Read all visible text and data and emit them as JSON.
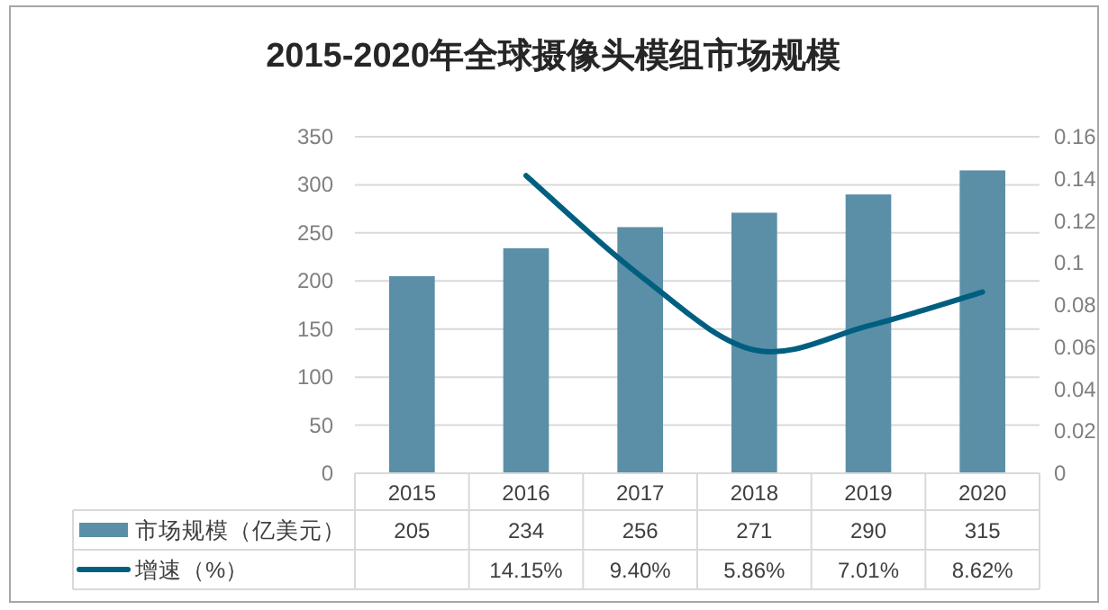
{
  "chart_data": {
    "type": "bar",
    "title": "2015-2020年全球摄像头模组市场规模",
    "categories": [
      "2015",
      "2016",
      "2017",
      "2018",
      "2019",
      "2020"
    ],
    "series": [
      {
        "name": "市场规模（亿美元）",
        "color": "#5b8fa7",
        "values": [
          205,
          234,
          256,
          271,
          290,
          315
        ],
        "value_labels": [
          "205",
          "234",
          "256",
          "271",
          "290",
          "315"
        ]
      },
      {
        "name": "增速（%）",
        "type": "line",
        "axis": "y2",
        "color": "#005f80",
        "values": [
          null,
          0.1415,
          0.094,
          0.0586,
          0.0701,
          0.0862
        ],
        "value_labels": [
          null,
          "14.15%",
          "9.40%",
          "5.86%",
          "7.01%",
          "8.62%"
        ]
      }
    ],
    "ylim": [
      0,
      350
    ],
    "yticks": [
      0,
      50,
      100,
      150,
      200,
      250,
      300,
      350
    ],
    "y2lim": [
      0,
      0.16
    ],
    "y2ticks": [
      0,
      0.02,
      0.04,
      0.06,
      0.08,
      0.1,
      0.12,
      0.14,
      0.16
    ],
    "grid": "y",
    "legend": "bottom"
  }
}
